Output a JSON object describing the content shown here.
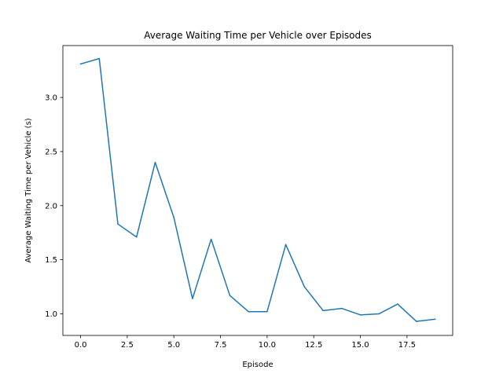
{
  "chart_data": {
    "type": "line",
    "title": "Average Waiting Time per Vehicle over Episodes",
    "xlabel": "Episode",
    "ylabel": "Average Waiting Time per Vehicle (s)",
    "x": [
      0,
      1,
      2,
      3,
      4,
      5,
      6,
      7,
      8,
      9,
      10,
      11,
      12,
      13,
      14,
      15,
      16,
      17,
      18,
      19
    ],
    "series": [
      {
        "color": "#1f77b4",
        "values": [
          3.31,
          3.36,
          1.83,
          1.71,
          2.4,
          1.89,
          1.14,
          1.69,
          1.17,
          1.02,
          1.02,
          1.64,
          1.25,
          1.03,
          1.05,
          0.99,
          1.0,
          1.09,
          0.93,
          0.95
        ]
      }
    ],
    "xlim": [
      -0.95,
      19.95
    ],
    "ylim": [
      0.8,
      3.48
    ],
    "xticks": [
      0.0,
      2.5,
      5.0,
      7.5,
      10.0,
      12.5,
      15.0,
      17.5
    ],
    "xtick_labels": [
      "0.0",
      "2.5",
      "5.0",
      "7.5",
      "10.0",
      "12.5",
      "15.0",
      "17.5"
    ],
    "yticks": [
      1.0,
      1.5,
      2.0,
      2.5,
      3.0
    ],
    "ytick_labels": [
      "1.0",
      "1.5",
      "2.0",
      "2.5",
      "3.0"
    ],
    "grid": false,
    "legend": "none"
  }
}
